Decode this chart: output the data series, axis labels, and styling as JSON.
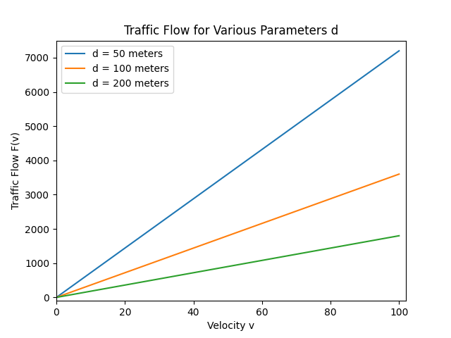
{
  "title": "Traffic Flow for Various Parameters d",
  "xlabel": "Velocity v",
  "ylabel": "Traffic Flow F(v)",
  "series": [
    {
      "d": 50,
      "label": "d = 50 meters",
      "color": "#1f77b4"
    },
    {
      "d": 100,
      "label": "d = 100 meters",
      "color": "#ff7f0e"
    },
    {
      "d": 200,
      "label": "d = 200 meters",
      "color": "#2ca02c"
    }
  ],
  "v_start": 0,
  "v_end": 100,
  "v_points": 500,
  "formula_multiplier": 3600,
  "xlim": [
    0,
    102
  ],
  "ylim": [
    -100,
    7500
  ],
  "figsize": [
    6.4,
    4.8
  ],
  "dpi": 100,
  "background_color": "#ffffff",
  "line_width": 1.5,
  "title_fontsize": 12,
  "label_fontsize": 10,
  "legend_fontsize": 10
}
